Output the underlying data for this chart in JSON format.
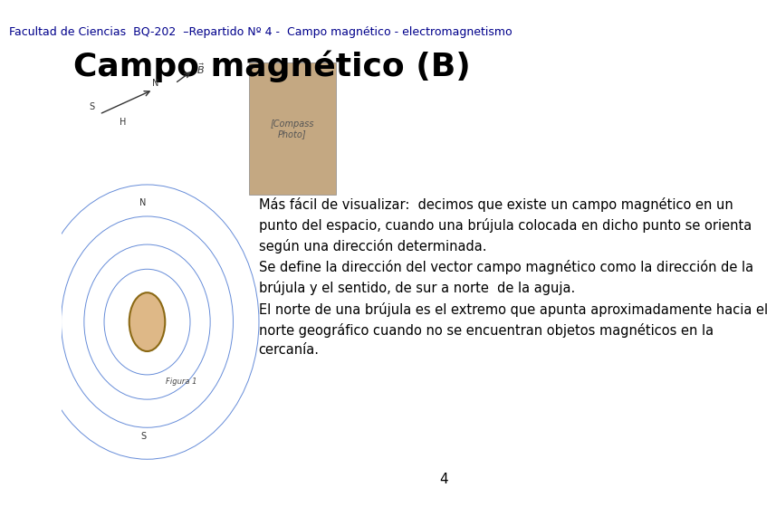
{
  "header": "Facultad de Ciencias  BQ-202  –Repartido Nº 4 -  Campo magnético - electromagnetismo",
  "title": "Campo magnético (B)",
  "body_text": "Más fácil de visualizar:  decimos que existe un campo magnético en un\npunto del espacio, cuando una brújula colocada en dicho punto se orienta\nsegún una dirección determinada.\nSe define la dirección del vector campo magnético como la dirección de la\nbrújula y el sentido, de sur a norte  de la aguja.\nEl norte de una brújula es el extremo que apunta aproximadamente hacia el\nnorte geográfico cuando no se encuentran objetos magnéticos en la\ncercanía.",
  "page_number": "4",
  "header_color": "#00008B",
  "title_color": "#000000",
  "body_color": "#000000",
  "bg_color": "#FFFFFF",
  "header_fontsize": 9,
  "title_fontsize": 26,
  "body_fontsize": 10.5
}
